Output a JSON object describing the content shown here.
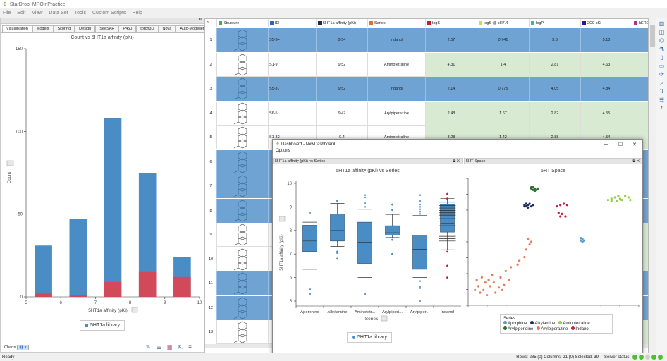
{
  "app": {
    "title": "StarDrop",
    "project": "MPOinPractice"
  },
  "menu": [
    "File",
    "Edit",
    "View",
    "Data Set",
    "Tools",
    "Custom Scripts",
    "Help"
  ],
  "left_tabs": [
    "Visualisation",
    "Models",
    "Scoring",
    "Design",
    "SeeSAR",
    "P450",
    "torch3D",
    "Nova",
    "Auto-Modeller"
  ],
  "left_chart": {
    "chart_data": {
      "type": "bar",
      "title": "Count vs 5HT1a affinity (pKi)",
      "xlabel": "5HT1a affinity (pKi)",
      "ylabel": "Count",
      "xlim": [
        5,
        10
      ],
      "ylim": [
        0,
        150
      ],
      "x_ticks": [
        "5",
        "6",
        "7",
        "8",
        "9",
        "10"
      ],
      "y_ticks": [
        "0",
        "50",
        "100",
        "150"
      ],
      "categories": [
        "5.25-5.75",
        "6.25-6.75",
        "7.25-7.75",
        "8.25-8.75",
        "9.25-9.75"
      ],
      "bins": [
        [
          5.25,
          5.75
        ],
        [
          6.25,
          6.75
        ],
        [
          7.25,
          7.75
        ],
        [
          8.25,
          8.75
        ],
        [
          9.25,
          9.75
        ]
      ],
      "series": [
        {
          "name": "5HT1a library",
          "values": [
            31,
            47,
            108,
            75,
            24
          ],
          "color": "#4a8cc4"
        },
        {
          "values": [
            2,
            1,
            9,
            15,
            12
          ],
          "color": "#d04a5a"
        }
      ],
      "legend": "bottom"
    },
    "charts_label": "Charts"
  },
  "status": {
    "ready": "Ready",
    "summary": "Rows: 285 (0) Columns: 21 (0) Selected: 39",
    "server": "Server status:",
    "lights": [
      "#4cc030",
      "#4cc030",
      "#d0d0d0",
      "#4cc030",
      "#4cc030"
    ]
  },
  "table": {
    "columns": [
      {
        "label": "Structure",
        "color": "#3cb44b"
      },
      {
        "label": "ID",
        "color": "#2f5fd0"
      },
      {
        "label": "5HT1a affinity (pKi)",
        "color": "#1a2a50"
      },
      {
        "label": "Series",
        "color": "#e07030"
      },
      {
        "label": "logS",
        "color": "#c02020"
      },
      {
        "label": "logS @ pH7.4",
        "color": "#c8e040"
      },
      {
        "label": "logP",
        "color": "#40b0c0"
      },
      {
        "label": "2C9 pKi",
        "color": "#2a1a90"
      },
      {
        "label": "hERG",
        "color": "#b03090"
      }
    ],
    "rows": [
      {
        "n": "1",
        "sel": true,
        "v": [
          "S5-34",
          "9.54",
          "Indanol",
          "2.07",
          "0.741",
          "3.3",
          "5.18"
        ]
      },
      {
        "n": "2",
        "sel": false,
        "v": [
          "S1-9",
          "9.52",
          "Aminotetraline",
          "4.31",
          "1.4",
          "2.81",
          "4.63"
        ]
      },
      {
        "n": "3",
        "sel": true,
        "v": [
          "S5-37",
          "9.52",
          "Indanol",
          "2.14",
          "0.775",
          "4.05",
          "4.84"
        ]
      },
      {
        "n": "4",
        "sel": false,
        "v": [
          "S6-5",
          "9.47",
          "Arylpiperazine",
          "2.48",
          "1.67",
          "2.82",
          "4.55"
        ]
      },
      {
        "n": "5",
        "sel": false,
        "v": [
          "S1-32",
          "9.4",
          "Aminotetraline",
          "3.28",
          "1.42",
          "2.88",
          "4.54"
        ]
      },
      {
        "n": "6",
        "sel": true,
        "v": []
      },
      {
        "n": "7",
        "sel": true,
        "v": []
      },
      {
        "n": "8",
        "sel": true,
        "v": []
      },
      {
        "n": "9",
        "sel": false,
        "v": []
      },
      {
        "n": "10",
        "sel": false,
        "v": []
      },
      {
        "n": "11",
        "sel": true,
        "v": []
      },
      {
        "n": "12",
        "sel": true,
        "v": []
      },
      {
        "n": "13",
        "sel": false,
        "v": []
      }
    ]
  },
  "dashboard": {
    "title": "Dashboard - NewDashboard",
    "options": "Options",
    "panel1": "5HT1a affinity (pKi) vs Series",
    "panel2": "5HT Space",
    "box_chart": {
      "chart_data": {
        "type": "box",
        "title": "5HT1a affinity (pKi) vs Series",
        "xlabel": "Series",
        "ylabel": "5HT1a affinity (pKi)",
        "ylim": [
          5,
          10
        ],
        "y_ticks": [
          "5",
          "6",
          "7",
          "8",
          "9",
          "10"
        ],
        "categories": [
          "Aporphine",
          "Alkylamine",
          "Aminotetr...",
          "Arylpiperi...",
          "Arylpiper...",
          "Indanol"
        ],
        "boxes": [
          {
            "low": 6.35,
            "q1": 7.1,
            "median": 7.55,
            "q3": 8.22,
            "high": 8.35,
            "outliers": [
              8.75,
              5.5,
              5.3
            ]
          },
          {
            "low": 7.32,
            "q1": 7.55,
            "median": 8.0,
            "q3": 8.7,
            "high": 9.15,
            "outliers": [
              9.25,
              7.1,
              7.05,
              6.8
            ]
          },
          {
            "low": 6.0,
            "q1": 6.6,
            "median": 7.5,
            "q3": 8.35,
            "high": 8.9,
            "outliers": [
              9.5,
              9.4,
              9.15,
              9.0,
              5.3
            ]
          },
          {
            "low": 7.7,
            "q1": 7.8,
            "median": 7.9,
            "q3": 8.2,
            "high": 8.68,
            "outliers": [
              9.1,
              8.87,
              7.6,
              7.0
            ]
          },
          {
            "low": 6.0,
            "q1": 6.35,
            "median": 7.2,
            "q3": 7.8,
            "high": 8.63,
            "outliers": [
              9.5,
              9.25,
              9.1,
              9.0,
              8.9,
              8.8,
              8.7,
              5.85,
              5.6,
              5.55,
              5.0
            ]
          },
          {
            "low": 7.18,
            "q1": 7.93,
            "median": 8.3,
            "q3": 9.1,
            "high": 9.35,
            "outliers": [
              9.55,
              9.35,
              7.1,
              6.5,
              6.0
            ],
            "extra_lines": [
              9.2,
              9.05,
              8.95,
              8.85,
              8.75,
              8.65,
              8.5,
              8.2,
              7.75,
              7.65,
              7.55
            ]
          }
        ],
        "legend": "5HT1a library"
      }
    },
    "scatter_chart": {
      "chart_data": {
        "type": "scatter",
        "title": "5HT Space",
        "legend_title": "Series",
        "legend": "bottom",
        "series": [
          {
            "name": "Aporphine",
            "color": "#5b9bd0",
            "points": [
              [
                66,
                53
              ],
              [
                67,
                52
              ],
              [
                66,
                51
              ],
              [
                67,
                50
              ],
              [
                68,
                51
              ]
            ]
          },
          {
            "name": "Alkylamine",
            "color": "#1a2a5a",
            "points": [
              [
                33,
                79
              ],
              [
                34,
                80
              ],
              [
                35,
                79
              ],
              [
                36,
                80
              ],
              [
                33,
                78
              ],
              [
                35,
                77
              ],
              [
                37,
                78
              ],
              [
                38,
                79
              ],
              [
                34,
                78
              ]
            ]
          },
          {
            "name": "Aminotetraline",
            "color": "#8ed040",
            "points": [
              [
                82,
                83
              ],
              [
                84,
                84
              ],
              [
                86,
                85
              ],
              [
                88,
                86
              ],
              [
                89,
                84
              ],
              [
                92,
                86
              ],
              [
                94,
                85
              ],
              [
                95,
                83
              ],
              [
                87,
                82
              ],
              [
                90,
                83
              ],
              [
                84,
                82
              ]
            ]
          },
          {
            "name": "Arylpiperidine",
            "color": "#2e6b2e",
            "points": [
              [
                37,
                92
              ],
              [
                38,
                93
              ],
              [
                39,
                92
              ],
              [
                40,
                91
              ],
              [
                38,
                91
              ],
              [
                37,
                93
              ],
              [
                39,
                90
              ],
              [
                41,
                92
              ]
            ]
          },
          {
            "name": "Arylpiperazine",
            "color": "#e87a5a",
            "points": [
              [
                5,
                20
              ],
              [
                8,
                22
              ],
              [
                10,
                18
              ],
              [
                12,
                20
              ],
              [
                6,
                15
              ],
              [
                9,
                12
              ],
              [
                13,
                15
              ],
              [
                15,
                18
              ],
              [
                18,
                14
              ],
              [
                20,
                12
              ],
              [
                7,
                10
              ],
              [
                11,
                8
              ],
              [
                16,
                10
              ],
              [
                21,
                16
              ],
              [
                24,
                20
              ],
              [
                22,
                27
              ],
              [
                25,
                30
              ],
              [
                29,
                32
              ],
              [
                33,
                38
              ],
              [
                34,
                44
              ],
              [
                36,
                48
              ],
              [
                35,
                52
              ],
              [
                37,
                50
              ],
              [
                4,
                12
              ],
              [
                14,
                24
              ],
              [
                19,
                22
              ],
              [
                30,
                35
              ]
            ]
          },
          {
            "name": "Indanol",
            "color": "#c02040",
            "points": [
              [
                52,
                78
              ],
              [
                54,
                79
              ],
              [
                56,
                80
              ],
              [
                58,
                79
              ],
              [
                53,
                73
              ],
              [
                55,
                72
              ],
              [
                57,
                70
              ],
              [
                54,
                70
              ]
            ]
          }
        ]
      }
    }
  },
  "right_toolbar": [
    "grid-icon",
    "chart-icon",
    "molecule-icon",
    "flask-icon",
    "columns-icon",
    "filter-icon",
    "refresh-icon",
    "zoom-icon",
    "sort-icon",
    "link-icon",
    "function-icon"
  ]
}
